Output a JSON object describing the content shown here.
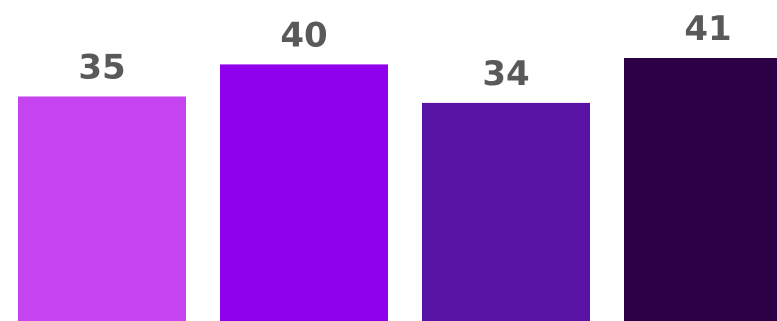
{
  "chart_data": {
    "type": "bar",
    "categories": [
      "",
      "",
      "",
      ""
    ],
    "values": [
      35,
      40,
      34,
      41
    ],
    "value_labels": [
      "35",
      "40",
      "34",
      "41"
    ],
    "colors": [
      "#c644f0",
      "#8f00ec",
      "#5813a4",
      "#2d0045"
    ],
    "label_color": "#595959",
    "title": "",
    "xlabel": "",
    "ylabel": "",
    "ylim": [
      0,
      41
    ],
    "grid": false,
    "legend": "none"
  }
}
